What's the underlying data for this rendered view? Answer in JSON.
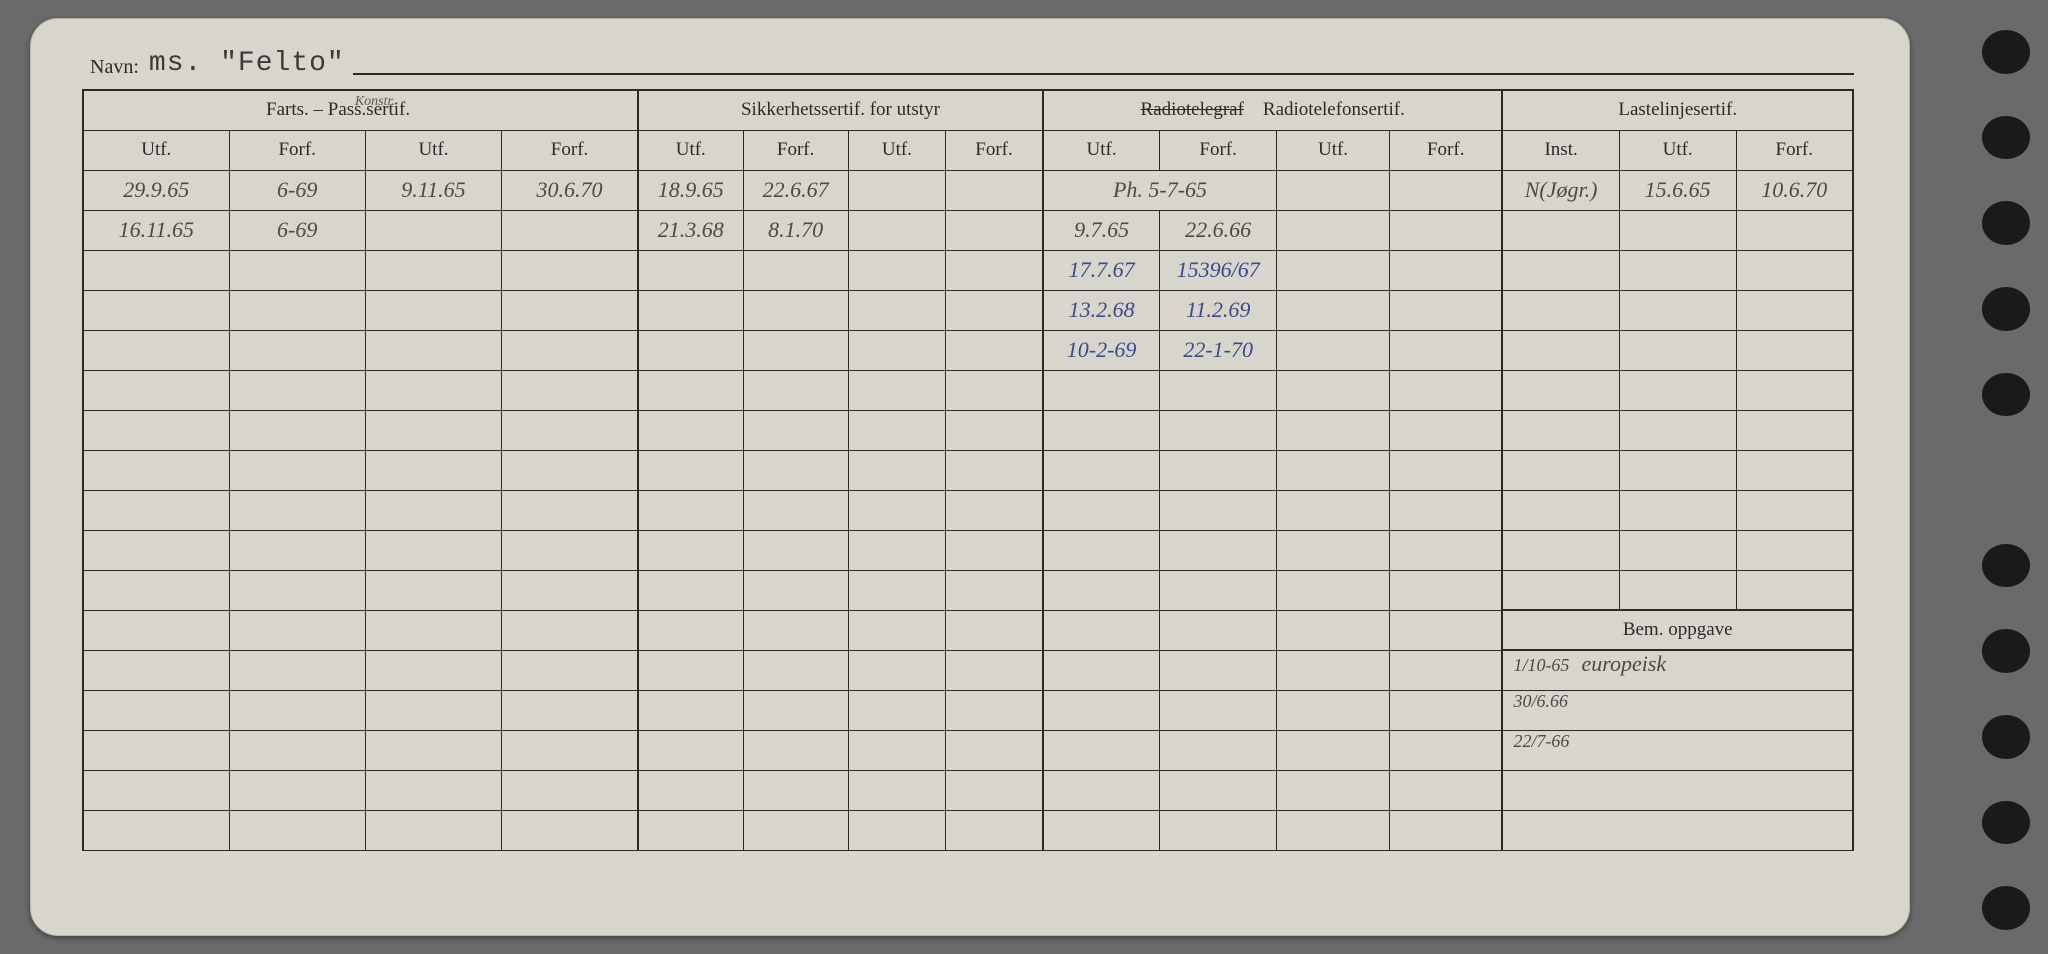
{
  "card": {
    "name_label": "Navn:",
    "name_value": "ms. \"Felto\"",
    "colors": {
      "paper": "#d8d5cc",
      "ink": "#2a2a2a",
      "pencil": "#4a4a48",
      "blue_pen": "#3a4a8a",
      "background": "#6a6a6a"
    }
  },
  "headers": {
    "group1": "Farts. – Pass.sertif.",
    "group1_annot": "Konstr.",
    "group2": "Sikkerhetssertif. for utstyr",
    "group3a_struck": "Radiotelegraf",
    "group3b": "Radiotelefonsertif.",
    "group4": "Lastelinjesertif.",
    "utf": "Utf.",
    "forf": "Forf.",
    "inst": "Inst.",
    "bem": "Bem. oppgave"
  },
  "rows": [
    {
      "c0": "29.9.65",
      "c1": "6-69",
      "c2": "9.11.65",
      "c3": "30.6.70",
      "c4": "18.9.65",
      "c5": "22.6.67",
      "c6": "",
      "c7": "",
      "c8": "Ph. 5-7-65",
      "c9": "",
      "c10": "",
      "c11": "",
      "c12": "N(Jøgr.)",
      "c13": "15.6.65",
      "c14": "10.6.70"
    },
    {
      "c0": "16.11.65",
      "c1": "6-69",
      "c2": "",
      "c3": "",
      "c4": "21.3.68",
      "c5": "8.1.70",
      "c6": "",
      "c7": "",
      "c8": "9.7.65",
      "c9": "22.6.66",
      "c10": "",
      "c11": "",
      "c12": "",
      "c13": "",
      "c14": ""
    },
    {
      "c0": "",
      "c1": "",
      "c2": "",
      "c3": "",
      "c4": "",
      "c5": "",
      "c6": "",
      "c7": "",
      "c8": "17.7.67",
      "c9": "15396/67",
      "c10": "",
      "c11": "",
      "c12": "",
      "c13": "",
      "c14": ""
    },
    {
      "c0": "",
      "c1": "",
      "c2": "",
      "c3": "",
      "c4": "",
      "c5": "",
      "c6": "",
      "c7": "",
      "c8": "13.2.68",
      "c9": "11.2.69",
      "c10": "",
      "c11": "",
      "c12": "",
      "c13": "",
      "c14": ""
    },
    {
      "c0": "",
      "c1": "",
      "c2": "",
      "c3": "",
      "c4": "",
      "c5": "",
      "c6": "",
      "c7": "",
      "c8": "10-2-69",
      "c9": "22-1-70",
      "c10": "",
      "c11": "",
      "c12": "",
      "c13": "",
      "c14": ""
    }
  ],
  "bem": {
    "line1a": "1/10-65",
    "line1b": "europeisk",
    "line2": "30/6.66",
    "line3": "22/7-66"
  },
  "blank_rows_before_bem": 6,
  "bem_rows": 5
}
